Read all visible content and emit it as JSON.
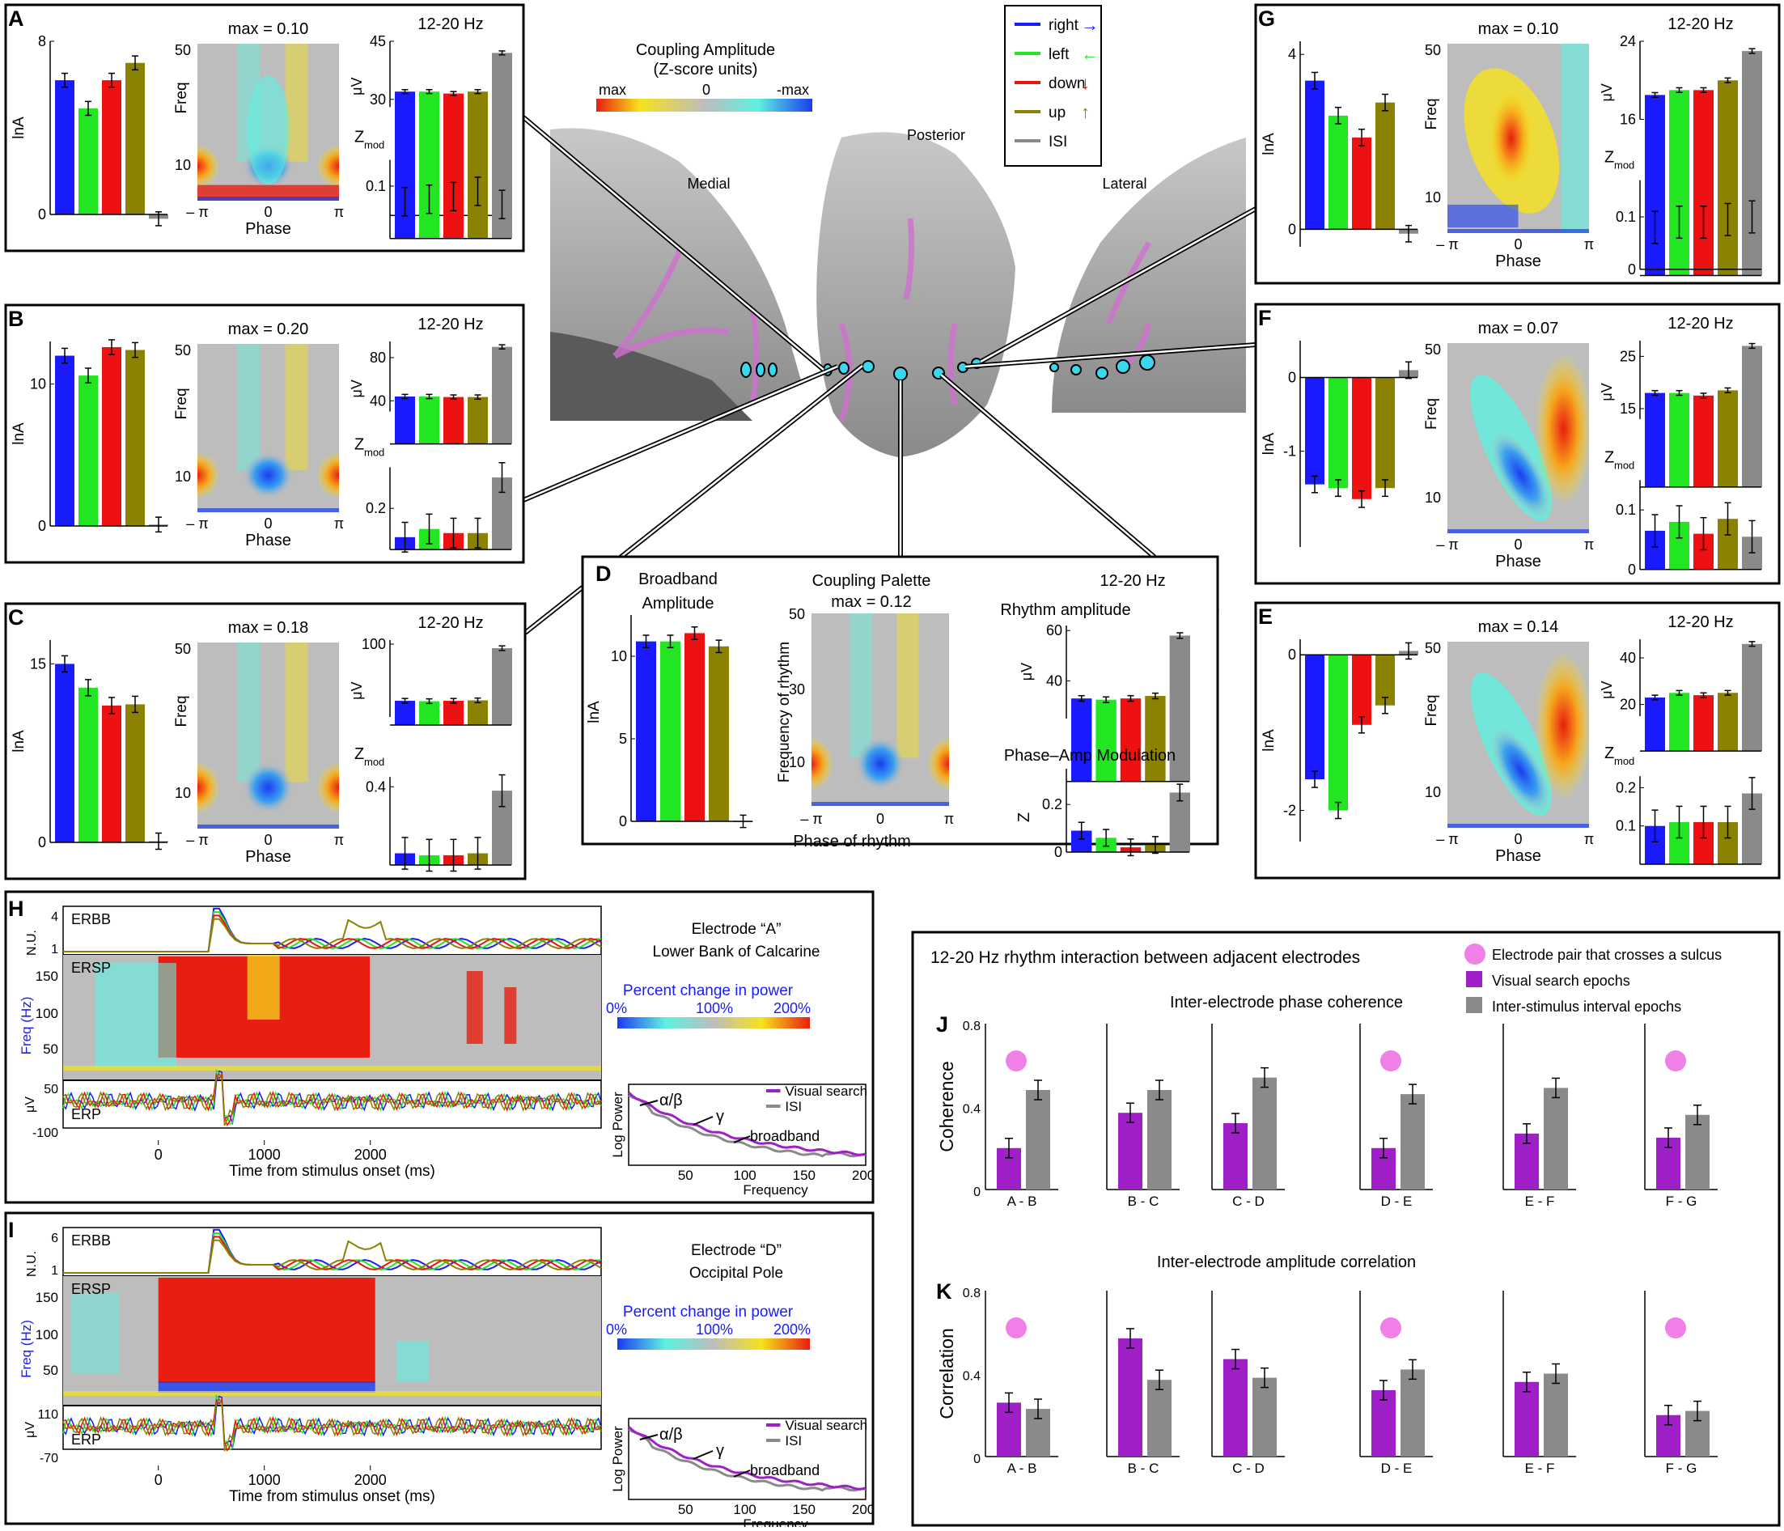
{
  "colors": {
    "right": "#1a1aff",
    "left": "#22e622",
    "down": "#ee1111",
    "up": "#8a8200",
    "isi": "#8a8a8a",
    "purple": "#a020c8",
    "pink": "#f080e8",
    "red": "#e81e10",
    "cyan": "#5ff0e0",
    "blue": "#1a3cf0",
    "gray": "#bdbdbd"
  },
  "legend": {
    "items": [
      {
        "label": "right",
        "color": "#1a1aff",
        "arrow": "→"
      },
      {
        "label": "left",
        "color": "#22e622",
        "arrow": "←"
      },
      {
        "label": "down",
        "color": "#ee1111",
        "arrow": "↓"
      },
      {
        "label": "up",
        "color": "#8a8200",
        "arrow": "↑"
      },
      {
        "label": "ISI",
        "color": "#8a8a8a",
        "arrow": ""
      }
    ]
  },
  "colorbar": {
    "title1": "Coupling Amplitude",
    "title2": "(Z-score units)",
    "left": "max",
    "mid": "0",
    "right": "-max"
  },
  "brain": {
    "medial": "Medial",
    "posterior": "Posterior",
    "lateral": "Lateral"
  },
  "common": {
    "hz": "12-20 Hz",
    "freq": "Freq",
    "phase": "Phase",
    "lna": "lnA",
    "uv": "μV",
    "zmod": "Z",
    "zmod_sub": "mod",
    "f50": "50",
    "f10": "10",
    "negpi": "– π",
    "zero": "0",
    "pi": "π"
  },
  "panels": {
    "A": {
      "letter": "A",
      "max": "max = 0.10",
      "bar_ticks": [
        "8",
        "0"
      ],
      "uv_ticks": [
        "45",
        "30"
      ],
      "z_ticks": [
        "0.1"
      ],
      "bars": [
        6.2,
        4.9,
        6.2,
        7.0,
        -0.2
      ],
      "uv": [
        32,
        32,
        31.5,
        32,
        42
      ],
      "z": [
        0.07,
        0.075,
        0.08,
        0.09,
        0.065
      ]
    },
    "B": {
      "letter": "B",
      "max": "max = 0.20",
      "bar_ticks": [
        "10",
        "0"
      ],
      "uv_ticks": [
        "80",
        "40"
      ],
      "z_ticks": [
        "0.2"
      ],
      "bars": [
        12,
        10.6,
        12.6,
        12.4,
        0.1
      ],
      "uv": [
        44,
        44,
        43.5,
        43.5,
        90
      ],
      "z": [
        0.06,
        0.1,
        0.08,
        0.08,
        0.35
      ]
    },
    "C": {
      "letter": "C",
      "max": "max = 0.18",
      "bar_ticks": [
        "15",
        "0"
      ],
      "uv_ticks": [
        "100"
      ],
      "z_ticks": [
        "0.4"
      ],
      "bars": [
        15,
        13,
        11.5,
        11.6,
        0.1
      ],
      "uv": [
        30,
        29.5,
        30,
        30.5,
        95
      ],
      "z": [
        0.06,
        0.05,
        0.05,
        0.06,
        0.38
      ]
    },
    "D": {
      "letter": "D",
      "title1": "Broadband",
      "title2": "Amplitude",
      "cp1": "Coupling Palette",
      "max": "max = 0.12",
      "ylab": "Frequency of rhythm",
      "xlab": "Phase of rhythm",
      "rhy": "Rhythm amplitude",
      "pam": "Phase–Amp Modulation",
      "bar_ticks": [
        "10",
        "5",
        "0"
      ],
      "freq_ticks": [
        "50",
        "30",
        "10"
      ],
      "uv_ticks": [
        "60",
        "40"
      ],
      "z_ticks": [
        "0.2",
        "0"
      ],
      "bars": [
        10.9,
        10.9,
        11.4,
        10.6,
        0
      ],
      "uv": [
        33,
        32.5,
        33,
        34,
        58
      ],
      "z": [
        0.09,
        0.06,
        0.02,
        0.03,
        0.25
      ]
    },
    "E": {
      "letter": "E",
      "max": "max = 0.14",
      "bar_ticks": [
        "0",
        "-2"
      ],
      "uv_ticks": [
        "40",
        "20"
      ],
      "z_ticks": [
        "0.2",
        "0.1"
      ],
      "bars": [
        -1.6,
        -2.0,
        -0.9,
        -0.65,
        0.05
      ],
      "uv": [
        23,
        25,
        24,
        25,
        46
      ],
      "z": [
        0.1,
        0.11,
        0.11,
        0.11,
        0.185
      ]
    },
    "F": {
      "letter": "F",
      "max": "max = 0.07",
      "bar_ticks": [
        "0",
        "-1"
      ],
      "uv_ticks": [
        "25",
        "15"
      ],
      "z_ticks": [
        "0.1",
        "0"
      ],
      "bars": [
        -1.45,
        -1.5,
        -1.65,
        -1.5,
        0.1
      ],
      "uv": [
        18,
        18,
        17.5,
        18.5,
        27
      ],
      "z": [
        0.065,
        0.08,
        0.06,
        0.085,
        0.055
      ]
    },
    "G": {
      "letter": "G",
      "max": "max = 0.10",
      "bar_ticks": [
        "4",
        "0"
      ],
      "uv_ticks": [
        "24",
        "16"
      ],
      "z_ticks": [
        "0.1",
        "0"
      ],
      "bars": [
        3.4,
        2.6,
        2.1,
        2.9,
        -0.1
      ],
      "uv": [
        18.5,
        19,
        19,
        20,
        23
      ],
      "z": [
        0.08,
        0.09,
        0.09,
        0.095,
        0.1
      ]
    }
  },
  "H": {
    "letter": "H",
    "erbb": "ERBB",
    "ersp": "ERSP",
    "erp": "ERP",
    "nu": "N.U.",
    "hz": "Freq (Hz)",
    "uv": "μV",
    "title1": "Electrode “A”",
    "title2": "Lower Bank of Calcarine",
    "pct1": "Percent  change in power",
    "p0": "0%",
    "p100": "100%",
    "p200": "200%",
    "erbb_ticks": [
      "4",
      "1"
    ],
    "freq_ticks": [
      "150",
      "100",
      "50"
    ],
    "erp_ticks": [
      "50",
      "-100"
    ],
    "time_ticks": [
      "0",
      "1000",
      "2000"
    ],
    "xlabel": "Time from stimulus onset (ms)",
    "inset_y": "Log Power",
    "inset_x": "Frequency",
    "inset_ticks": [
      "50",
      "100",
      "150",
      "200"
    ],
    "vs": "Visual search",
    "isi": "ISI",
    "ab": "α/β",
    "g": "γ",
    "bb": "broadband"
  },
  "I": {
    "letter": "I",
    "erbb": "ERBB",
    "ersp": "ERSP",
    "erp": "ERP",
    "nu": "N.U.",
    "hz": "Freq (Hz)",
    "uv": "μV",
    "title1": "Electrode “D”",
    "title2": "Occipital Pole",
    "pct1": "Percent  change in power",
    "p0": "0%",
    "p100": "100%",
    "p200": "200%",
    "erbb_ticks": [
      "6",
      "1"
    ],
    "freq_ticks": [
      "150",
      "100",
      "50"
    ],
    "erp_ticks": [
      "110",
      "-70"
    ],
    "time_ticks": [
      "0",
      "1000",
      "2000"
    ],
    "xlabel": "Time from stimulus onset (ms)",
    "inset_y": "Log Power",
    "inset_x": "Frequency",
    "inset_ticks": [
      "50",
      "100",
      "150",
      "200"
    ],
    "vs": "Visual search",
    "isi": "ISI",
    "ab": "α/β",
    "g": "γ",
    "bb": "broadband"
  },
  "JK": {
    "title": "12-20 Hz rhythm interaction between adjacent electrodes",
    "leg_pink": "Electrode pair that crosses a sulcus",
    "leg_purple": "Visual search epochs",
    "leg_gray": "Inter-stimulus interval epochs",
    "j_letter": "J",
    "k_letter": "K",
    "j_title": "Inter-electrode phase coherence",
    "k_title": "Inter-electrode amplitude correlation",
    "j_ylab": "Coherence",
    "k_ylab": "Correlation",
    "ticks": [
      "0.8",
      "0.4",
      "0"
    ],
    "pairs": [
      "A  -  B",
      "B  -  C",
      "C  -  D",
      "D  -  E",
      "E  -  F",
      "F  -  G"
    ],
    "sulcus": [
      true,
      false,
      false,
      true,
      false,
      true
    ]
  },
  "chart_data": [
    {
      "type": "bar",
      "title": "Inter-electrode phase coherence",
      "ylabel": "Coherence",
      "ylim": [
        0,
        0.8
      ],
      "categories": [
        "A - B",
        "B - C",
        "C - D",
        "D - E",
        "E - F",
        "F - G"
      ],
      "series": [
        {
          "name": "Visual search epochs",
          "values": [
            0.2,
            0.37,
            0.32,
            0.2,
            0.27,
            0.25
          ]
        },
        {
          "name": "Inter-stimulus interval epochs",
          "values": [
            0.48,
            0.48,
            0.54,
            0.46,
            0.49,
            0.36
          ]
        }
      ]
    },
    {
      "type": "bar",
      "title": "Inter-electrode amplitude correlation",
      "ylabel": "Correlation",
      "ylim": [
        0,
        0.8
      ],
      "categories": [
        "A - B",
        "B - C",
        "C - D",
        "D - E",
        "E - F",
        "F - G"
      ],
      "series": [
        {
          "name": "Visual search epochs",
          "values": [
            0.26,
            0.57,
            0.47,
            0.32,
            0.36,
            0.2
          ]
        },
        {
          "name": "Inter-stimulus interval epochs",
          "values": [
            0.23,
            0.37,
            0.38,
            0.42,
            0.4,
            0.22
          ]
        }
      ]
    }
  ]
}
